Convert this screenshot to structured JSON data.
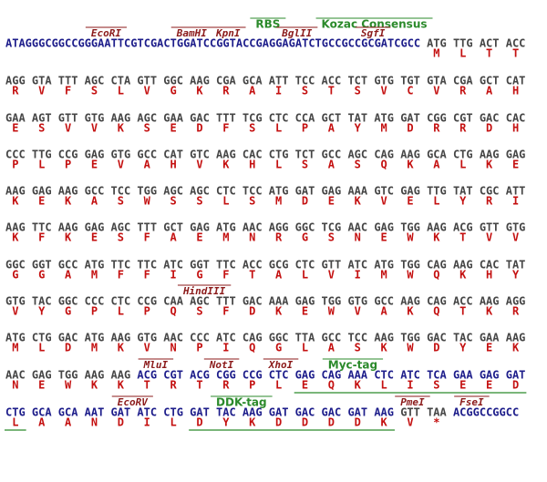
{
  "rows": [
    {
      "annotations": [
        "EcoRI",
        "BamHI",
        "KpnI",
        "RBS",
        "BglII",
        "Kozac Consensus",
        "SgfI"
      ],
      "prefix": "ATAGGGCGGCCGGGAATTCGTCGACTGGATCCGGTACCGAGGAGATCTGCCGCCGCGATCGCC",
      "codons": [
        "ATG",
        "TTG",
        "ACT",
        "ACC"
      ],
      "amino_acids": [
        "M",
        "L",
        "T",
        "T"
      ]
    },
    {
      "codons": [
        "AGG",
        "GTA",
        "TTT",
        "AGC",
        "CTA",
        "GTT",
        "GGC",
        "AAG",
        "CGA",
        "GCA",
        "ATT",
        "TCC",
        "ACC",
        "TCT",
        "GTG",
        "TGT",
        "GTA",
        "CGA",
        "GCT",
        "CAT"
      ],
      "amino_acids": [
        "R",
        "V",
        "F",
        "S",
        "L",
        "V",
        "G",
        "K",
        "R",
        "A",
        "I",
        "S",
        "T",
        "S",
        "V",
        "C",
        "V",
        "R",
        "A",
        "H"
      ]
    },
    {
      "codons": [
        "GAA",
        "AGT",
        "GTT",
        "GTG",
        "AAG",
        "AGC",
        "GAA",
        "GAC",
        "TTT",
        "TCG",
        "CTC",
        "CCA",
        "GCT",
        "TAT",
        "ATG",
        "GAT",
        "CGG",
        "CGT",
        "GAC",
        "CAC"
      ],
      "amino_acids": [
        "E",
        "S",
        "V",
        "V",
        "K",
        "S",
        "E",
        "D",
        "F",
        "S",
        "L",
        "P",
        "A",
        "Y",
        "M",
        "D",
        "R",
        "R",
        "D",
        "H"
      ]
    },
    {
      "codons": [
        "CCC",
        "TTG",
        "CCG",
        "GAG",
        "GTG",
        "GCC",
        "CAT",
        "GTC",
        "AAG",
        "CAC",
        "CTG",
        "TCT",
        "GCC",
        "AGC",
        "CAG",
        "AAG",
        "GCA",
        "CTG",
        "AAG",
        "GAG"
      ],
      "amino_acids": [
        "P",
        "L",
        "P",
        "E",
        "V",
        "A",
        "H",
        "V",
        "K",
        "H",
        "L",
        "S",
        "A",
        "S",
        "Q",
        "K",
        "A",
        "L",
        "K",
        "E"
      ]
    },
    {
      "codons": [
        "AAG",
        "GAG",
        "AAG",
        "GCC",
        "TCC",
        "TGG",
        "AGC",
        "AGC",
        "CTC",
        "TCC",
        "ATG",
        "GAT",
        "GAG",
        "AAA",
        "GTC",
        "GAG",
        "TTG",
        "TAT",
        "CGC",
        "ATT"
      ],
      "amino_acids": [
        "K",
        "E",
        "K",
        "A",
        "S",
        "W",
        "S",
        "S",
        "L",
        "S",
        "M",
        "D",
        "E",
        "K",
        "V",
        "E",
        "L",
        "Y",
        "R",
        "I"
      ]
    },
    {
      "codons": [
        "AAG",
        "TTC",
        "AAG",
        "GAG",
        "AGC",
        "TTT",
        "GCT",
        "GAG",
        "ATG",
        "AAC",
        "AGG",
        "GGC",
        "TCG",
        "AAC",
        "GAG",
        "TGG",
        "AAG",
        "ACG",
        "GTT",
        "GTG"
      ],
      "amino_acids": [
        "K",
        "F",
        "K",
        "E",
        "S",
        "F",
        "A",
        "E",
        "M",
        "N",
        "R",
        "G",
        "S",
        "N",
        "E",
        "W",
        "K",
        "T",
        "V",
        "V"
      ]
    },
    {
      "codons": [
        "GGC",
        "GGT",
        "GCC",
        "ATG",
        "TTC",
        "TTC",
        "ATC",
        "GGT",
        "TTC",
        "ACC",
        "GCG",
        "CTC",
        "GTT",
        "ATC",
        "ATG",
        "TGG",
        "CAG",
        "AAG",
        "CAC",
        "TAT"
      ],
      "amino_acids": [
        "G",
        "G",
        "A",
        "M",
        "F",
        "F",
        "I",
        "G",
        "F",
        "T",
        "A",
        "L",
        "V",
        "I",
        "M",
        "W",
        "Q",
        "K",
        "H",
        "Y"
      ]
    },
    {
      "annotations": [
        "HindIII"
      ],
      "codons": [
        "GTG",
        "TAC",
        "GGC",
        "CCC",
        "CTC",
        "CCG",
        "CAA",
        "AGC",
        "TTT",
        "GAC",
        "AAA",
        "GAG",
        "TGG",
        "GTG",
        "GCC",
        "AAG",
        "CAG",
        "ACC",
        "AAG",
        "AGG"
      ],
      "amino_acids": [
        "V",
        "Y",
        "G",
        "P",
        "L",
        "P",
        "Q",
        "S",
        "F",
        "D",
        "K",
        "E",
        "W",
        "V",
        "A",
        "K",
        "Q",
        "T",
        "K",
        "R"
      ]
    },
    {
      "codons": [
        "ATG",
        "CTG",
        "GAC",
        "ATG",
        "AAG",
        "GTG",
        "AAC",
        "CCC",
        "ATC",
        "CAG",
        "GGC",
        "TTA",
        "GCC",
        "TCC",
        "AAG",
        "TGG",
        "GAC",
        "TAC",
        "GAA",
        "AAG"
      ],
      "amino_acids": [
        "M",
        "L",
        "D",
        "M",
        "K",
        "V",
        "N",
        "P",
        "I",
        "Q",
        "G",
        "L",
        "A",
        "S",
        "K",
        "W",
        "D",
        "Y",
        "E",
        "K"
      ]
    },
    {
      "annotations": [
        "MluI",
        "NotI",
        "XhoI",
        "Myc-tag"
      ],
      "codons": [
        "AAC",
        "GAG",
        "TGG",
        "AAG",
        "AAG",
        "ACG",
        "CGT",
        "ACG",
        "CGG",
        "CCG",
        "CTC",
        "GAG",
        "CAG",
        "AAA",
        "CTC",
        "ATC",
        "TCA",
        "GAA",
        "GAG",
        "GAT"
      ],
      "amino_acids": [
        "N",
        "E",
        "W",
        "K",
        "K",
        "T",
        "R",
        "T",
        "R",
        "P",
        "L",
        "E",
        "Q",
        "K",
        "L",
        "I",
        "S",
        "E",
        "E",
        "D"
      ]
    },
    {
      "annotations": [
        "EcoRV",
        "DDK-tag",
        "PmeI",
        "FseI"
      ],
      "codons": [
        "CTG",
        "GCA",
        "GCA",
        "AAT",
        "GAT",
        "ATC",
        "CTG",
        "GAT",
        "TAC",
        "AAG",
        "GAT",
        "GAC",
        "GAC",
        "GAT",
        "AAG",
        "GTT",
        "TAA"
      ],
      "amino_acids": [
        "L",
        "A",
        "A",
        "N",
        "D",
        "I",
        "L",
        "D",
        "Y",
        "K",
        "D",
        "D",
        "D",
        "D",
        "K",
        "V",
        "*"
      ],
      "suffix": "ACGGCCGGCC"
    }
  ]
}
